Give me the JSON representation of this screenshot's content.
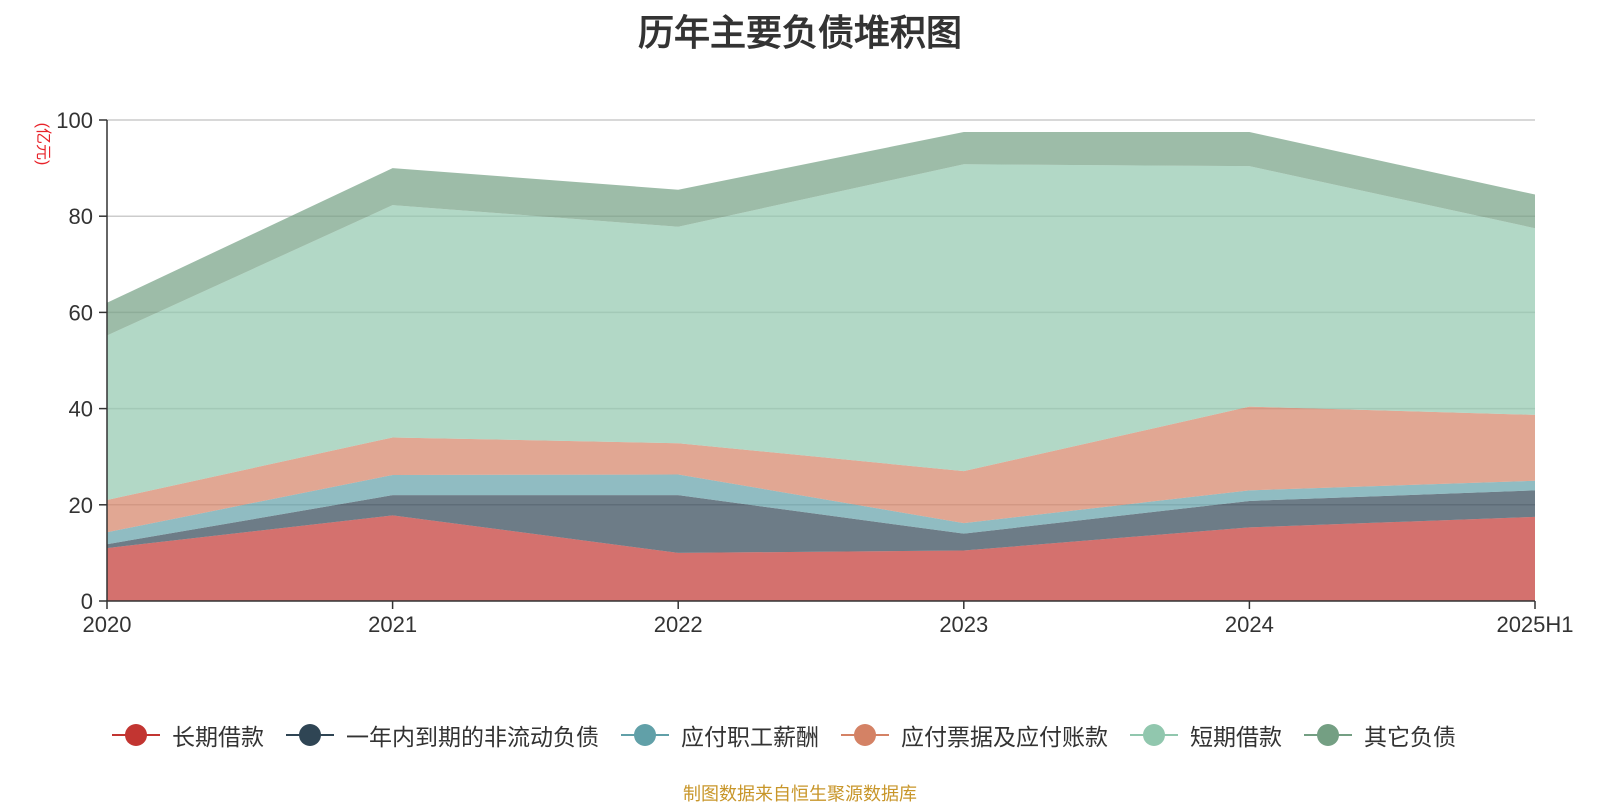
{
  "chart_data": {
    "type": "area",
    "stacked": true,
    "title": "历年主要负债堆积图",
    "ylabel": "(亿元)",
    "ylim": [
      0,
      100
    ],
    "yticks": [
      0,
      20,
      40,
      60,
      80,
      100
    ],
    "grid": true,
    "legend_position": "bottom",
    "categories": [
      "2020",
      "2021",
      "2022",
      "2023",
      "2024",
      "2025H1"
    ],
    "series": [
      {
        "name": "长期借款",
        "color": "#c23531",
        "values": [
          11.0,
          17.8,
          10.0,
          10.5,
          15.3,
          17.5
        ]
      },
      {
        "name": "一年内到期的非流动负债",
        "color": "#2f4554",
        "values": [
          0.8,
          4.2,
          12.0,
          3.5,
          5.5,
          5.5
        ]
      },
      {
        "name": "应付职工薪酬",
        "color": "#61a0a8",
        "values": [
          2.5,
          4.2,
          4.3,
          2.2,
          2.2,
          2.0
        ]
      },
      {
        "name": "应付票据及应付账款",
        "color": "#d48265",
        "values": [
          6.7,
          7.8,
          6.5,
          10.8,
          17.4,
          13.7
        ]
      },
      {
        "name": "短期借款",
        "color": "#91c7ae",
        "values": [
          34.2,
          48.3,
          45.0,
          63.8,
          50.0,
          38.8
        ]
      },
      {
        "name": "其它负债",
        "color": "#749f83",
        "values": [
          6.8,
          7.7,
          7.7,
          6.7,
          7.1,
          7.0
        ]
      }
    ]
  },
  "source_note": "制图数据来自恒生聚源数据库"
}
